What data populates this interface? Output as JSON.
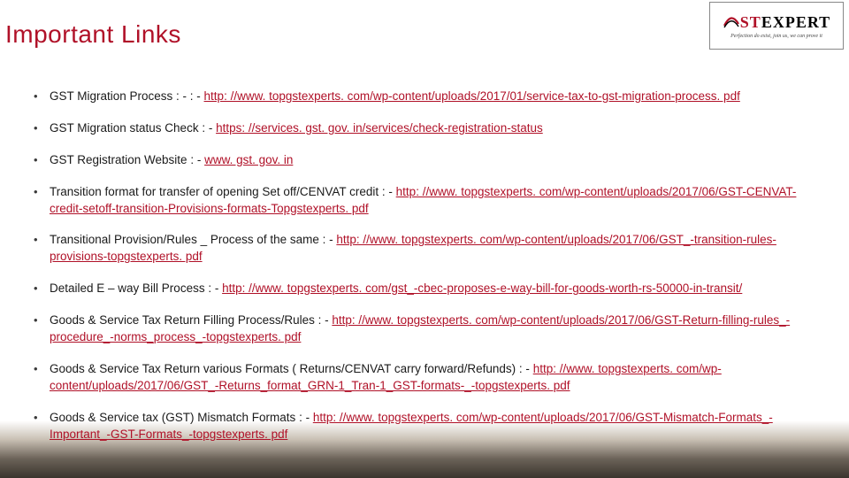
{
  "title": {
    "text": "Important Links",
    "color": "#b01128",
    "fontsize": 28
  },
  "logo": {
    "brand_left": "ST",
    "brand_right": "EXPERT",
    "tagline": "Perfection do exist, join us, we can prove it"
  },
  "link_color": "#b01128",
  "items": [
    {
      "label": "GST Migration Process  : -  :  -  ",
      "links": [
        {
          "text": "http: //www. topgstexperts. com/wp-content/uploads/2017/01/service-tax-to-gst-migration-process. pdf"
        }
      ]
    },
    {
      "label": "GST Migration status Check  : - ",
      "links": [
        {
          "text": "https: //services. gst. gov. in/services/check-registration-status"
        }
      ]
    },
    {
      "label": "GST Registration Website  : - ",
      "links": [
        {
          "text": "www. gst. gov. in"
        }
      ]
    },
    {
      "label": "Transition format for transfer of opening Set off/CENVAT credit : - ",
      "links": [
        {
          "text": "http: //www. topgstexperts. com/wp-content/uploads/2017/06/GST-CENVAT-credit-setoff-transition-Provisions-formats-Topgstexperts. pdf"
        }
      ]
    },
    {
      "label": "Transitional Provision/Rules _ Process of the same : -  ",
      "links": [
        {
          "text": "http: //www. topgstexperts. com/wp-content/uploads/2017/06/GST_-transition-rules-provisions-topgstexperts. pdf"
        }
      ]
    },
    {
      "label": "Detailed E – way Bill Process : - ",
      "links": [
        {
          "text": "http: //www. topgstexperts. com/gst_-cbec-proposes-e-way-bill-for-goods-worth-rs-50000-in-transit/"
        }
      ]
    },
    {
      "label": "Goods & Service Tax Return Filling Process/Rules : - ",
      "links": [
        {
          "text": "http: //www. topgstexperts. com/wp-content/uploads/2017/06/GST-Return-filling-rules_-procedure_-norms_process_-topgstexperts. pdf"
        }
      ]
    },
    {
      "label": "Goods & Service Tax Return various Formats ( Returns/CENVAT carry forward/Refunds) : - ",
      "links": [
        {
          "text": "http: //www. topgstexperts. com/wp-content/uploads/2017/06/GST_-Returns_format_GRN-1_Tran-1_GST-formats-_-topgstexperts. pdf"
        }
      ]
    },
    {
      "label": "Goods & Service tax (GST) Mismatch Formats : - ",
      "links": [
        {
          "text": "http: //www. topgstexperts. com/wp-content/uploads/2017/06/GST-Mismatch-Formats_-Important_-GST-Formats_-topgstexperts. pdf"
        }
      ]
    }
  ]
}
